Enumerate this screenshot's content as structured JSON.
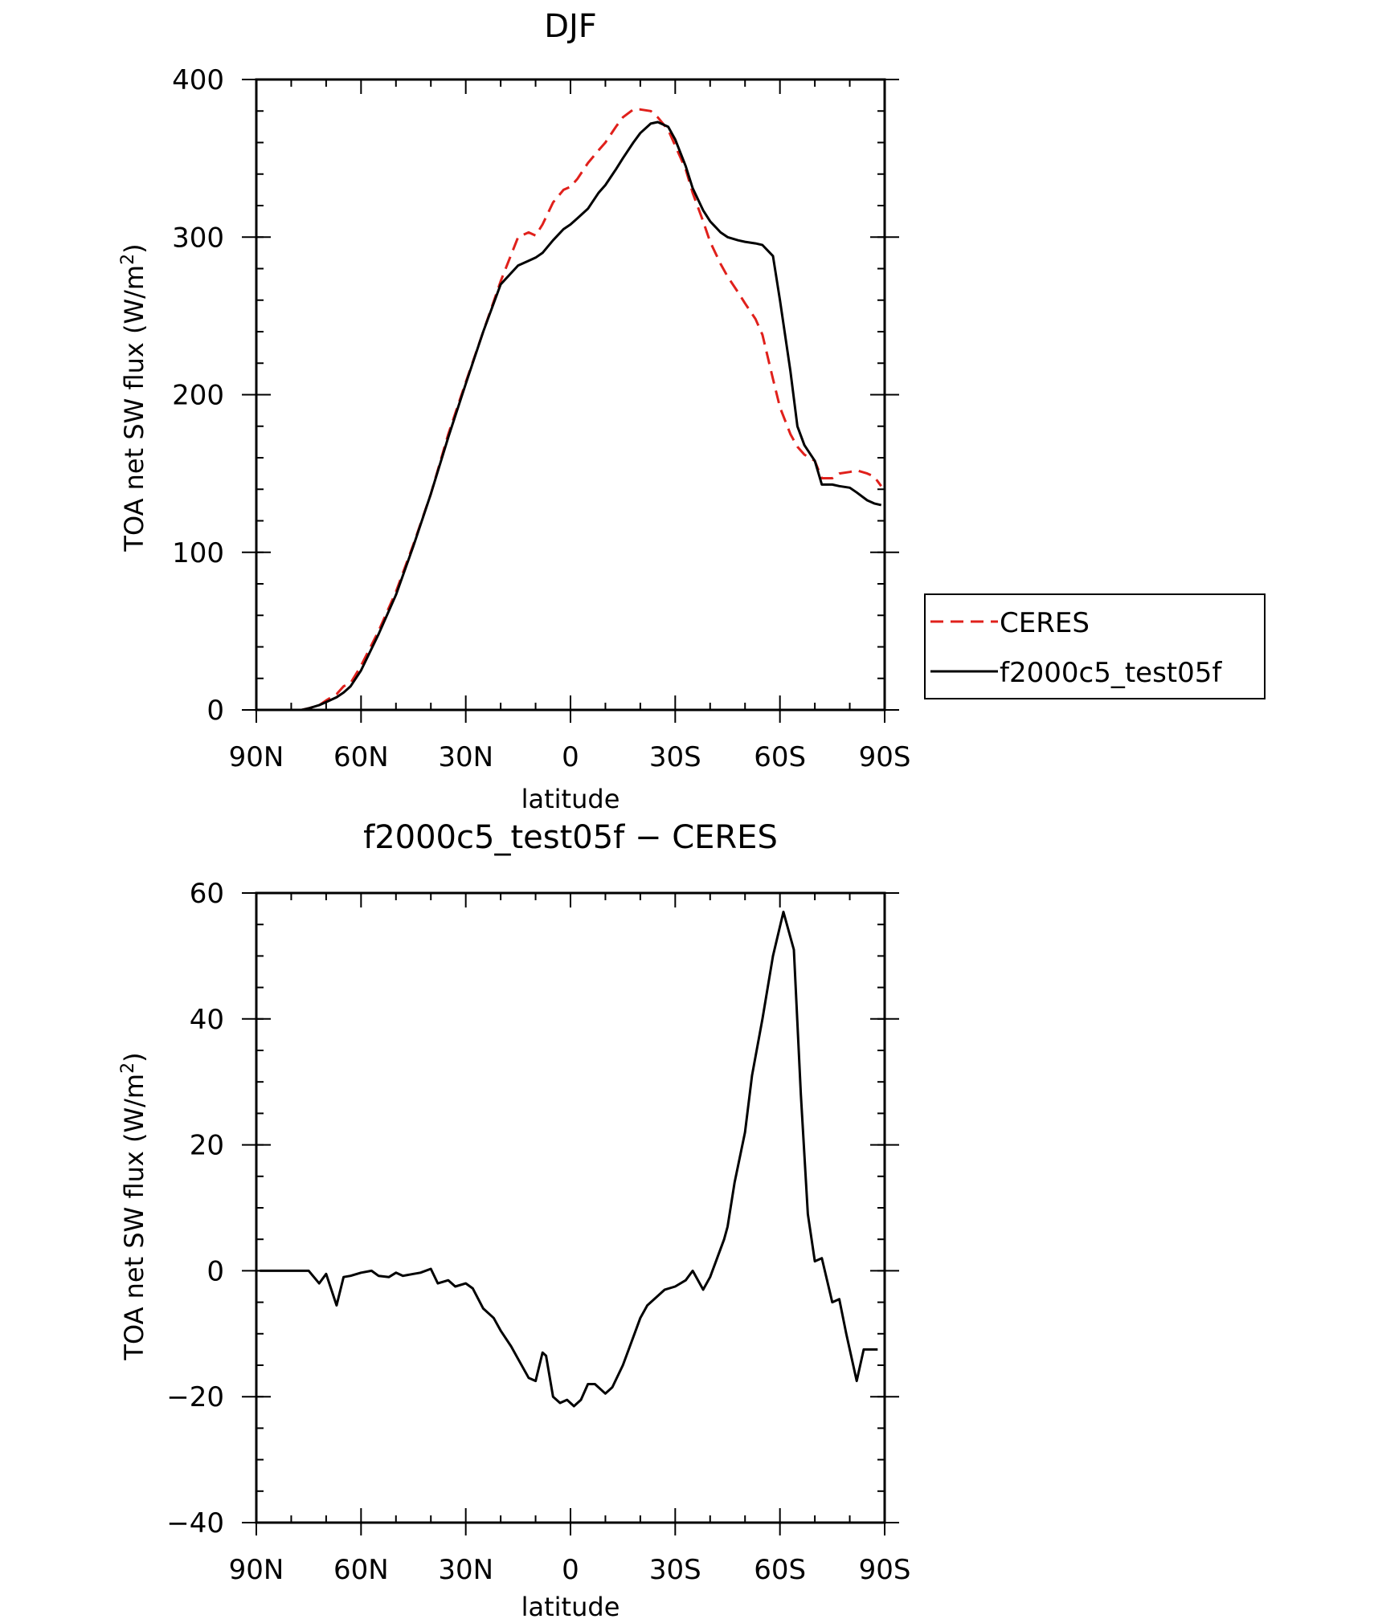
{
  "chart_data": [
    {
      "type": "line",
      "title": "DJF",
      "xlabel": "latitude",
      "ylabel": "TOA net SW flux (W/m",
      "ylabel_sup": "2",
      "ylabel_close": ")",
      "xlim": [
        90,
        -90
      ],
      "ylim": [
        0,
        400
      ],
      "xticks": [
        {
          "value": 90,
          "label": "90N"
        },
        {
          "value": 60,
          "label": "60N"
        },
        {
          "value": 30,
          "label": "30N"
        },
        {
          "value": 0,
          "label": "0"
        },
        {
          "value": -30,
          "label": "30S"
        },
        {
          "value": -60,
          "label": "60S"
        },
        {
          "value": -90,
          "label": "90S"
        }
      ],
      "yticks": [
        {
          "value": 0,
          "label": "0"
        },
        {
          "value": 100,
          "label": "100"
        },
        {
          "value": 200,
          "label": "200"
        },
        {
          "value": 300,
          "label": "300"
        },
        {
          "value": 400,
          "label": "400"
        }
      ],
      "legend_position": "right",
      "series": [
        {
          "name": "CERES",
          "color": "#e0201b",
          "dash": true,
          "x": [
            89,
            85,
            80,
            77,
            75,
            72,
            70,
            67,
            65,
            63,
            60,
            55,
            50,
            45,
            40,
            35,
            30,
            25,
            20,
            15,
            12,
            10,
            8,
            5,
            2,
            0,
            -2,
            -5,
            -8,
            -10,
            -13,
            -15,
            -18,
            -20,
            -23,
            -25,
            -28,
            -30,
            -33,
            -35,
            -38,
            -40,
            -43,
            -45,
            -48,
            -50,
            -53,
            -55,
            -58,
            -60,
            -63,
            -65,
            -67,
            -70,
            -72,
            -75,
            -77,
            -80,
            -82,
            -85,
            -87,
            -89
          ],
          "y": [
            0,
            0,
            0,
            0,
            1,
            3,
            6,
            10,
            15,
            17,
            28,
            50,
            75,
            105,
            137,
            175,
            208,
            240,
            272,
            300,
            303,
            301,
            308,
            322,
            330,
            332,
            337,
            347,
            355,
            360,
            370,
            376,
            381,
            381,
            380,
            376,
            368,
            358,
            343,
            328,
            310,
            297,
            283,
            275,
            265,
            258,
            248,
            238,
            210,
            192,
            175,
            167,
            162,
            158,
            147,
            147,
            150,
            151,
            152,
            150,
            148,
            142
          ]
        },
        {
          "name": "f2000c5_test05f",
          "color": "#000000",
          "dash": false,
          "x": [
            89,
            85,
            80,
            77,
            75,
            72,
            70,
            67,
            65,
            63,
            60,
            55,
            50,
            45,
            40,
            35,
            30,
            25,
            20,
            15,
            12,
            10,
            8,
            5,
            2,
            0,
            -2,
            -5,
            -8,
            -10,
            -13,
            -15,
            -18,
            -20,
            -23,
            -25,
            -28,
            -30,
            -33,
            -35,
            -38,
            -40,
            -43,
            -45,
            -48,
            -50,
            -53,
            -55,
            -58,
            -60,
            -63,
            -65,
            -67,
            -70,
            -72,
            -75,
            -77,
            -80,
            -82,
            -85,
            -87,
            -89
          ],
          "y": [
            0,
            0,
            0,
            0,
            1,
            3,
            5,
            8,
            11,
            15,
            25,
            48,
            73,
            104,
            137,
            173,
            207,
            240,
            270,
            282,
            285,
            287,
            290,
            298,
            305,
            308,
            312,
            318,
            328,
            333,
            343,
            350,
            360,
            366,
            372,
            373,
            370,
            362,
            345,
            331,
            317,
            310,
            303,
            300,
            298,
            297,
            296,
            295,
            288,
            260,
            215,
            180,
            168,
            158,
            143,
            143,
            142,
            141,
            138,
            133,
            131,
            130
          ]
        }
      ]
    },
    {
      "type": "line",
      "title": "f2000c5_test05f − CERES",
      "xlabel": "latitude",
      "ylabel": "TOA net SW flux (W/m",
      "ylabel_sup": "2",
      "ylabel_close": ")",
      "xlim": [
        90,
        -90
      ],
      "ylim": [
        -40,
        60
      ],
      "xticks": [
        {
          "value": 90,
          "label": "90N"
        },
        {
          "value": 60,
          "label": "60N"
        },
        {
          "value": 30,
          "label": "30N"
        },
        {
          "value": 0,
          "label": "0"
        },
        {
          "value": -30,
          "label": "30S"
        },
        {
          "value": -60,
          "label": "60S"
        },
        {
          "value": -90,
          "label": "90S"
        }
      ],
      "yticks": [
        {
          "value": -40,
          "label": "−40"
        },
        {
          "value": -20,
          "label": "−20"
        },
        {
          "value": 0,
          "label": "0"
        },
        {
          "value": 20,
          "label": "20"
        },
        {
          "value": 40,
          "label": "40"
        },
        {
          "value": 60,
          "label": "60"
        }
      ],
      "series": [
        {
          "color": "#000000",
          "dash": false,
          "x": [
            89,
            85,
            80,
            78,
            75,
            72,
            70,
            67,
            65,
            63,
            60,
            57,
            55,
            52,
            50,
            48,
            45,
            43,
            40,
            38,
            35,
            33,
            30,
            28,
            25,
            22,
            20,
            17,
            15,
            12,
            10,
            8,
            7,
            5,
            3,
            1,
            -1,
            -3,
            -5,
            -7,
            -10,
            -12,
            -15,
            -17,
            -20,
            -22,
            -25,
            -27,
            -30,
            -33,
            -35,
            -38,
            -40,
            -42,
            -44,
            -45,
            -47,
            -50,
            -52,
            -55,
            -58,
            -61,
            -64,
            -66,
            -68,
            -70,
            -72,
            -75,
            -77,
            -79,
            -82,
            -84,
            -86,
            -88
          ],
          "y": [
            0,
            0,
            0,
            0,
            0,
            -2,
            -0.5,
            -5.5,
            -1,
            -0.8,
            -0.3,
            0,
            -0.8,
            -1,
            -0.3,
            -0.8,
            -0.5,
            -0.3,
            0.3,
            -2,
            -1.5,
            -2.5,
            -2,
            -2.8,
            -6,
            -7.5,
            -9.5,
            -12,
            -14,
            -17,
            -17.5,
            -13,
            -13.5,
            -20,
            -21,
            -20.5,
            -21.5,
            -20.5,
            -18,
            -18,
            -19.5,
            -18.5,
            -15,
            -12,
            -7.5,
            -5.5,
            -4,
            -3,
            -2.5,
            -1.5,
            0,
            -3,
            -1,
            2,
            5,
            7,
            14,
            22,
            31,
            40,
            50,
            57,
            51,
            28,
            9,
            1.5,
            2,
            -5,
            -4.5,
            -10,
            -17.5,
            -12.5,
            -12.5,
            -12.5
          ]
        }
      ]
    }
  ]
}
